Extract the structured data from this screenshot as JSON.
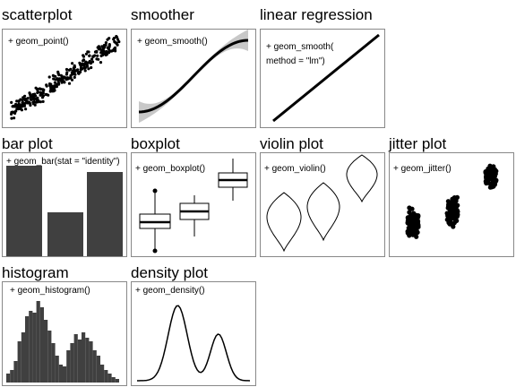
{
  "panels": [
    {
      "id": "scatter",
      "title": "scatterplot",
      "code": [
        "+ geom_point()"
      ]
    },
    {
      "id": "smoother",
      "title": "smoother",
      "code": [
        "+ geom_smooth()"
      ]
    },
    {
      "id": "linreg",
      "title": "linear regression",
      "code": [
        "+ geom_smooth(",
        "method = \"lm\")"
      ]
    },
    {
      "id": "bar",
      "title": "bar plot",
      "code": [
        "+ geom_bar(stat = \"identity\")"
      ]
    },
    {
      "id": "boxplot",
      "title": "boxplot",
      "code": [
        "+ geom_boxplot()"
      ]
    },
    {
      "id": "violin",
      "title": "violin plot",
      "code": [
        "+ geom_violin()"
      ]
    },
    {
      "id": "jitter",
      "title": "jitter plot",
      "code": [
        "+ geom_jitter()"
      ]
    },
    {
      "id": "histogram",
      "title": "histogram",
      "code": [
        "+ geom_histogram()"
      ]
    },
    {
      "id": "density",
      "title": "density plot",
      "code": [
        "+ geom_density()"
      ]
    }
  ],
  "colors": {
    "ink": "#000000",
    "fill": "#404040",
    "ribbon": "#c8c8c8",
    "border": "#888888"
  }
}
